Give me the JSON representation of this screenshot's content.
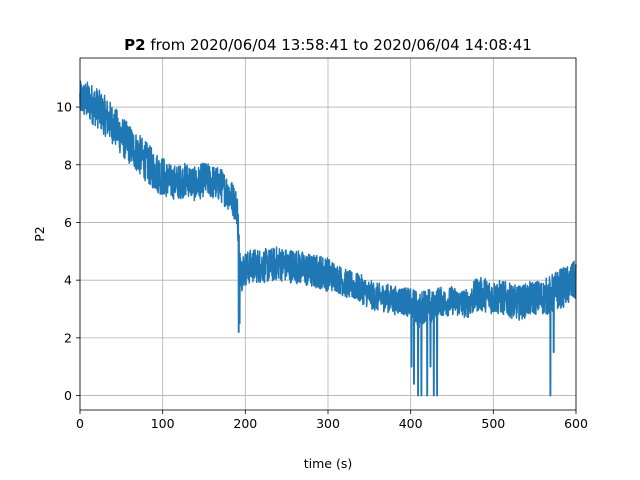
{
  "chart_data": {
    "type": "line",
    "title_bold": "P2",
    "title_rest": " from 2020/06/04 13:58:41 to 2020/06/04 14:08:41",
    "xlabel": "time (s)",
    "ylabel": "P2",
    "xlim": [
      0,
      600
    ],
    "ylim": [
      -0.5,
      11.7
    ],
    "xticks": [
      0,
      100,
      200,
      300,
      400,
      500,
      600
    ],
    "yticks": [
      0,
      2,
      4,
      6,
      8,
      10
    ],
    "grid": true,
    "line_color": "#1f77b4",
    "series": [
      {
        "x": [
          0,
          10,
          20,
          30,
          40,
          50,
          60,
          70,
          80,
          90,
          100,
          110,
          120,
          130,
          140,
          150,
          160,
          170,
          180,
          185,
          190,
          192,
          195,
          200,
          210,
          220,
          230,
          240,
          250,
          260,
          270,
          280,
          290,
          300,
          310,
          320,
          330,
          340,
          350,
          360,
          370,
          380,
          390,
          400,
          405,
          410,
          415,
          420,
          425,
          430,
          435,
          440,
          450,
          460,
          470,
          480,
          490,
          500,
          510,
          520,
          530,
          540,
          550,
          560,
          570,
          580,
          590,
          600
        ],
        "center": [
          10.3,
          10.2,
          10.0,
          9.7,
          9.4,
          9.0,
          8.7,
          8.4,
          8.1,
          7.8,
          7.6,
          7.4,
          7.4,
          7.5,
          7.3,
          7.5,
          7.4,
          7.3,
          7.0,
          6.8,
          6.5,
          5.5,
          4.3,
          4.4,
          4.5,
          4.5,
          4.5,
          4.6,
          4.5,
          4.5,
          4.4,
          4.3,
          4.3,
          4.2,
          4.1,
          3.9,
          3.8,
          3.7,
          3.5,
          3.4,
          3.4,
          3.3,
          3.3,
          3.2,
          3.1,
          2.9,
          3.1,
          3.2,
          3.0,
          3.2,
          3.3,
          3.2,
          3.3,
          3.2,
          3.2,
          3.5,
          3.5,
          3.4,
          3.4,
          3.3,
          3.2,
          3.3,
          3.4,
          3.4,
          3.5,
          3.7,
          3.8,
          4.0
        ],
        "spread": [
          0.6,
          0.7,
          0.7,
          0.7,
          0.7,
          0.7,
          0.7,
          0.7,
          0.7,
          0.7,
          0.7,
          0.6,
          0.6,
          0.6,
          0.6,
          0.6,
          0.6,
          0.6,
          0.6,
          0.6,
          0.6,
          0.8,
          0.7,
          0.6,
          0.6,
          0.6,
          0.6,
          0.6,
          0.6,
          0.6,
          0.6,
          0.6,
          0.6,
          0.6,
          0.5,
          0.5,
          0.5,
          0.5,
          0.5,
          0.5,
          0.5,
          0.5,
          0.5,
          0.5,
          0.6,
          0.6,
          0.6,
          0.6,
          0.6,
          0.5,
          0.5,
          0.5,
          0.5,
          0.5,
          0.5,
          0.6,
          0.6,
          0.6,
          0.6,
          0.6,
          0.6,
          0.6,
          0.6,
          0.6,
          0.7,
          0.7,
          0.7,
          0.7
        ],
        "spikes": [
          {
            "x": 192,
            "y": 2.2
          },
          {
            "x": 193,
            "y": 2.5
          },
          {
            "x": 401,
            "y": 1.0
          },
          {
            "x": 404,
            "y": 0.4
          },
          {
            "x": 409,
            "y": 0.0
          },
          {
            "x": 413,
            "y": 0.0
          },
          {
            "x": 420,
            "y": 0.0
          },
          {
            "x": 424,
            "y": 1.0
          },
          {
            "x": 428,
            "y": 0.0
          },
          {
            "x": 432,
            "y": 0.0
          },
          {
            "x": 569,
            "y": 0.0
          },
          {
            "x": 573,
            "y": 1.5
          }
        ]
      }
    ]
  }
}
